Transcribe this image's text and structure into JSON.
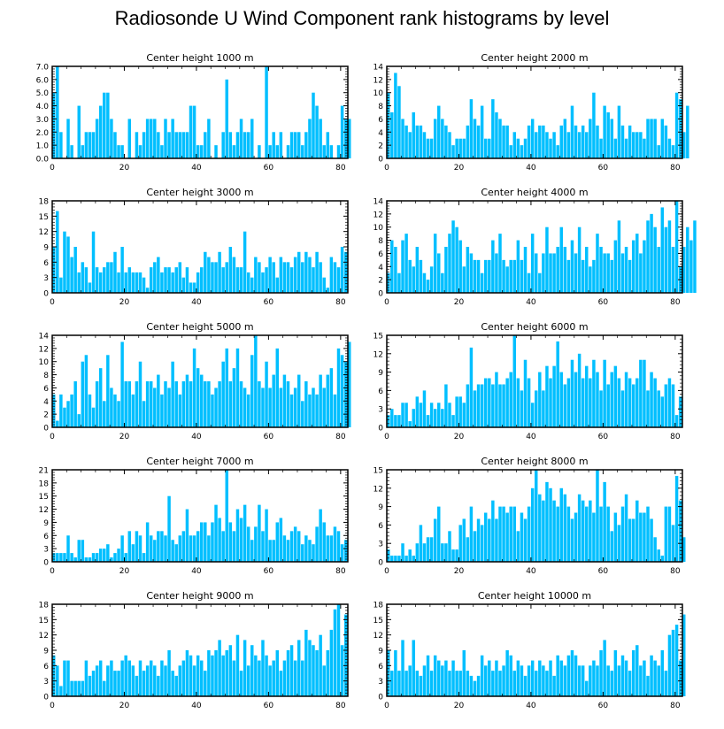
{
  "title": "Radiosonde U Wind Component rank histograms by level",
  "bar_color": "#00bfff",
  "chart_data": [
    {
      "type": "bar",
      "title": "Center height 1000 m",
      "x_ticks": [
        0,
        20,
        40,
        60,
        80
      ],
      "y_ticks": [
        "0.0",
        "1.0",
        "2.0",
        "3.0",
        "4.0",
        "5.0",
        "6.0",
        "7.0"
      ],
      "ylim": [
        0,
        7
      ],
      "values": [
        5,
        7,
        2,
        0,
        3,
        1,
        0,
        4,
        1,
        2,
        2,
        2,
        3,
        4,
        5,
        5,
        3,
        2,
        1,
        1,
        0,
        3,
        0,
        2,
        1,
        2,
        3,
        3,
        3,
        2,
        1,
        3,
        2,
        3,
        2,
        2,
        2,
        2,
        4,
        4,
        1,
        1,
        2,
        3,
        0,
        1,
        0,
        2,
        6,
        2,
        1,
        2,
        3,
        2,
        2,
        3,
        0,
        1,
        0,
        7,
        1,
        2,
        1,
        2,
        0,
        1,
        2,
        2,
        2,
        1,
        2,
        3,
        5,
        4,
        3,
        1,
        2,
        1,
        0,
        1,
        4,
        3,
        3
      ]
    },
    {
      "type": "bar",
      "title": "Center height 2000 m",
      "x_ticks": [
        0,
        20,
        40,
        60,
        80
      ],
      "y_ticks": [
        "0",
        "2",
        "4",
        "6",
        "8",
        "10",
        "12",
        "14"
      ],
      "ylim": [
        0,
        14
      ],
      "values": [
        10,
        7,
        13,
        11,
        6,
        5,
        4,
        7,
        5,
        5,
        4,
        3,
        3,
        6,
        8,
        6,
        5,
        4,
        2,
        3,
        3,
        3,
        5,
        9,
        6,
        5,
        8,
        3,
        3,
        9,
        7,
        6,
        5,
        5,
        2,
        4,
        3,
        2,
        3,
        5,
        6,
        4,
        5,
        5,
        4,
        3,
        4,
        2,
        5,
        6,
        4,
        8,
        5,
        4,
        5,
        4,
        6,
        10,
        5,
        3,
        8,
        7,
        6,
        3,
        8,
        5,
        3,
        5,
        4,
        4,
        4,
        3,
        6,
        6,
        6,
        2,
        6,
        5,
        3,
        2,
        10,
        9,
        4,
        8
      ]
    },
    {
      "type": "bar",
      "title": "Center height 3000 m",
      "x_ticks": [
        0,
        20,
        40,
        60,
        80
      ],
      "y_ticks": [
        "0",
        "3",
        "6",
        "9",
        "12",
        "15",
        "18"
      ],
      "ylim": [
        0,
        18
      ],
      "values": [
        9,
        16,
        3,
        12,
        11,
        7,
        9,
        4,
        6,
        5,
        2,
        12,
        5,
        4,
        5,
        6,
        6,
        8,
        4,
        9,
        4,
        5,
        4,
        4,
        4,
        3,
        1,
        5,
        6,
        7,
        4,
        5,
        5,
        4,
        5,
        6,
        3,
        5,
        2,
        2,
        4,
        5,
        8,
        7,
        6,
        6,
        8,
        5,
        6,
        9,
        7,
        5,
        5,
        12,
        4,
        3,
        7,
        6,
        4,
        5,
        7,
        6,
        3,
        7,
        6,
        6,
        5,
        7,
        8,
        6,
        8,
        7,
        5,
        8,
        6,
        3,
        1,
        7,
        6,
        5,
        9,
        8
      ]
    },
    {
      "type": "bar",
      "title": "Center height 4000 m",
      "x_ticks": [
        0,
        20,
        40,
        60,
        80
      ],
      "y_ticks": [
        "0",
        "2",
        "4",
        "6",
        "8",
        "10",
        "12",
        "14"
      ],
      "ylim": [
        0,
        14
      ],
      "values": [
        3,
        8,
        7,
        3,
        8,
        9,
        5,
        4,
        7,
        5,
        3,
        2,
        4,
        9,
        6,
        3,
        7,
        9,
        11,
        10,
        8,
        4,
        7,
        6,
        5,
        5,
        3,
        5,
        5,
        8,
        6,
        9,
        5,
        4,
        5,
        5,
        8,
        5,
        7,
        3,
        9,
        6,
        3,
        6,
        10,
        6,
        6,
        7,
        10,
        7,
        5,
        8,
        6,
        10,
        5,
        7,
        4,
        5,
        9,
        7,
        6,
        6,
        5,
        8,
        11,
        6,
        7,
        5,
        8,
        9,
        6,
        8,
        11,
        12,
        10,
        7,
        13,
        10,
        11,
        7,
        14,
        4,
        7,
        10,
        8,
        11
      ]
    },
    {
      "type": "bar",
      "title": "Center height 5000 m",
      "x_ticks": [
        0,
        20,
        40,
        60,
        80
      ],
      "y_ticks": [
        "0",
        "2",
        "4",
        "6",
        "8",
        "10",
        "12",
        "14"
      ],
      "ylim": [
        0,
        14
      ],
      "values": [
        5,
        1,
        5,
        3,
        4,
        5,
        7,
        2,
        10,
        11,
        5,
        3,
        7,
        9,
        4,
        11,
        6,
        5,
        4,
        13,
        7,
        7,
        5,
        7,
        10,
        4,
        7,
        7,
        6,
        8,
        5,
        7,
        6,
        10,
        7,
        5,
        7,
        8,
        7,
        12,
        9,
        8,
        7,
        7,
        5,
        6,
        7,
        10,
        12,
        7,
        9,
        12,
        7,
        6,
        5,
        11,
        14,
        7,
        6,
        10,
        6,
        8,
        12,
        6,
        8,
        7,
        5,
        6,
        8,
        4,
        7,
        5,
        6,
        5,
        8,
        6,
        8,
        9,
        5,
        12,
        11,
        10,
        13
      ]
    },
    {
      "type": "bar",
      "title": "Center height 6000 m",
      "x_ticks": [
        0,
        20,
        40,
        60,
        80
      ],
      "y_ticks": [
        "0",
        "3",
        "6",
        "9",
        "12",
        "15"
      ],
      "ylim": [
        0,
        15
      ],
      "values": [
        2,
        3,
        2,
        2,
        4,
        4,
        1,
        3,
        5,
        4,
        6,
        2,
        4,
        3,
        4,
        3,
        7,
        4,
        2,
        5,
        5,
        4,
        7,
        13,
        6,
        7,
        7,
        8,
        8,
        7,
        9,
        7,
        7,
        8,
        9,
        15,
        8,
        6,
        11,
        8,
        4,
        6,
        9,
        6,
        10,
        8,
        10,
        14,
        9,
        7,
        8,
        11,
        9,
        12,
        8,
        10,
        8,
        11,
        9,
        6,
        11,
        7,
        9,
        10,
        8,
        6,
        9,
        8,
        7,
        8,
        11,
        11,
        6,
        9,
        8,
        6,
        5,
        7,
        8,
        7,
        2,
        5
      ]
    },
    {
      "type": "bar",
      "title": "Center height 7000 m",
      "x_ticks": [
        0,
        20,
        40,
        60,
        80
      ],
      "y_ticks": [
        "0",
        "3",
        "6",
        "9",
        "12",
        "15",
        "18",
        "21"
      ],
      "ylim": [
        0,
        21
      ],
      "values": [
        2,
        2,
        2,
        2,
        6,
        2,
        1,
        5,
        5,
        1,
        1,
        2,
        2,
        3,
        3,
        4,
        1,
        2,
        3,
        6,
        2,
        7,
        4,
        7,
        6,
        2,
        9,
        6,
        5,
        7,
        7,
        6,
        15,
        5,
        4,
        6,
        7,
        12,
        6,
        6,
        7,
        9,
        9,
        6,
        9,
        13,
        10,
        7,
        21,
        9,
        7,
        12,
        10,
        13,
        8,
        5,
        8,
        13,
        7,
        12,
        5,
        5,
        9,
        10,
        6,
        5,
        7,
        8,
        7,
        4,
        6,
        5,
        4,
        8,
        12,
        9,
        6,
        6,
        8,
        7,
        4,
        5
      ]
    },
    {
      "type": "bar",
      "title": "Center height 8000 m",
      "x_ticks": [
        0,
        20,
        40,
        60,
        80
      ],
      "y_ticks": [
        "0",
        "3",
        "6",
        "9",
        "12",
        "15"
      ],
      "ylim": [
        0,
        15
      ],
      "values": [
        2,
        1,
        1,
        1,
        3,
        1,
        2,
        1,
        3,
        6,
        3,
        4,
        4,
        7,
        9,
        3,
        3,
        5,
        2,
        2,
        6,
        7,
        4,
        9,
        5,
        7,
        6,
        8,
        7,
        10,
        7,
        9,
        9,
        8,
        9,
        9,
        5,
        8,
        7,
        9,
        12,
        15,
        11,
        10,
        13,
        12,
        10,
        9,
        12,
        11,
        9,
        7,
        8,
        11,
        10,
        9,
        10,
        8,
        15,
        9,
        13,
        9,
        5,
        8,
        6,
        9,
        11,
        7,
        7,
        10,
        8,
        8,
        9,
        7,
        4,
        2,
        1,
        9,
        9,
        6,
        14,
        10,
        4
      ]
    },
    {
      "type": "bar",
      "title": "Center height 9000 m",
      "x_ticks": [
        0,
        20,
        40,
        60,
        80
      ],
      "y_ticks": [
        "0",
        "3",
        "6",
        "9",
        "12",
        "15",
        "18"
      ],
      "ylim": [
        0,
        18
      ],
      "values": [
        8,
        6,
        2,
        7,
        7,
        3,
        3,
        3,
        3,
        7,
        4,
        5,
        6,
        7,
        3,
        6,
        7,
        5,
        5,
        7,
        8,
        7,
        6,
        4,
        7,
        5,
        6,
        7,
        6,
        4,
        7,
        6,
        9,
        5,
        4,
        6,
        7,
        9,
        8,
        6,
        8,
        7,
        5,
        9,
        8,
        9,
        11,
        8,
        9,
        10,
        7,
        12,
        5,
        11,
        6,
        10,
        8,
        7,
        11,
        8,
        6,
        7,
        9,
        5,
        7,
        9,
        10,
        7,
        11,
        7,
        13,
        11,
        10,
        9,
        12,
        6,
        9,
        13,
        17,
        18,
        10,
        16
      ]
    },
    {
      "type": "bar",
      "title": "Center height 10000 m",
      "x_ticks": [
        0,
        20,
        40,
        60,
        80
      ],
      "y_ticks": [
        "0",
        "3",
        "6",
        "9",
        "12",
        "15",
        "18"
      ],
      "ylim": [
        0,
        18
      ],
      "values": [
        9,
        5,
        9,
        5,
        11,
        5,
        6,
        11,
        5,
        4,
        6,
        8,
        5,
        8,
        7,
        6,
        7,
        5,
        7,
        5,
        5,
        9,
        5,
        4,
        3,
        4,
        8,
        6,
        7,
        5,
        7,
        5,
        6,
        9,
        8,
        5,
        7,
        6,
        4,
        6,
        7,
        5,
        7,
        6,
        5,
        7,
        4,
        8,
        7,
        6,
        8,
        9,
        8,
        6,
        6,
        3,
        6,
        7,
        6,
        9,
        11,
        6,
        5,
        9,
        6,
        8,
        7,
        5,
        9,
        10,
        6,
        7,
        4,
        8,
        7,
        6,
        9,
        5,
        12,
        13,
        14,
        7,
        16
      ]
    }
  ]
}
